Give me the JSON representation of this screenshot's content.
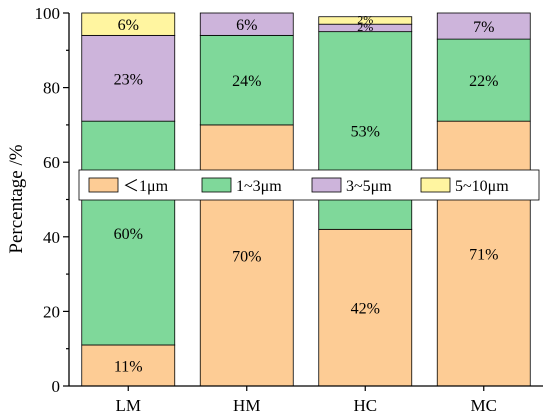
{
  "chart_data": {
    "type": "bar",
    "stacked": true,
    "categories": [
      "LM",
      "HM",
      "HC",
      "MC"
    ],
    "series": [
      {
        "name": "＜1μm",
        "color": "#FDCC95",
        "values": [
          11,
          70,
          42,
          71
        ],
        "labels": [
          "11%",
          "70%",
          "42%",
          "71%"
        ]
      },
      {
        "name": "1~3μm",
        "color": "#7FD89A",
        "values": [
          60,
          24,
          53,
          22
        ],
        "labels": [
          "60%",
          "24%",
          "53%",
          "22%"
        ]
      },
      {
        "name": "3~5μm",
        "color": "#CDB4DB",
        "values": [
          23,
          6,
          2,
          7
        ],
        "labels": [
          "23%",
          "6%",
          "2%",
          "7%"
        ]
      },
      {
        "name": "5~10μm",
        "color": "#FFF5A0",
        "values": [
          6,
          0,
          2,
          0
        ],
        "labels": [
          "6%",
          "",
          "2%",
          ""
        ]
      }
    ],
    "ylabel": "Percentage /%",
    "xlabel": "",
    "ylim": [
      0,
      100
    ],
    "yticks": [
      0,
      20,
      40,
      60,
      80,
      100
    ],
    "grid": false,
    "legend_position": "inside-middle"
  }
}
